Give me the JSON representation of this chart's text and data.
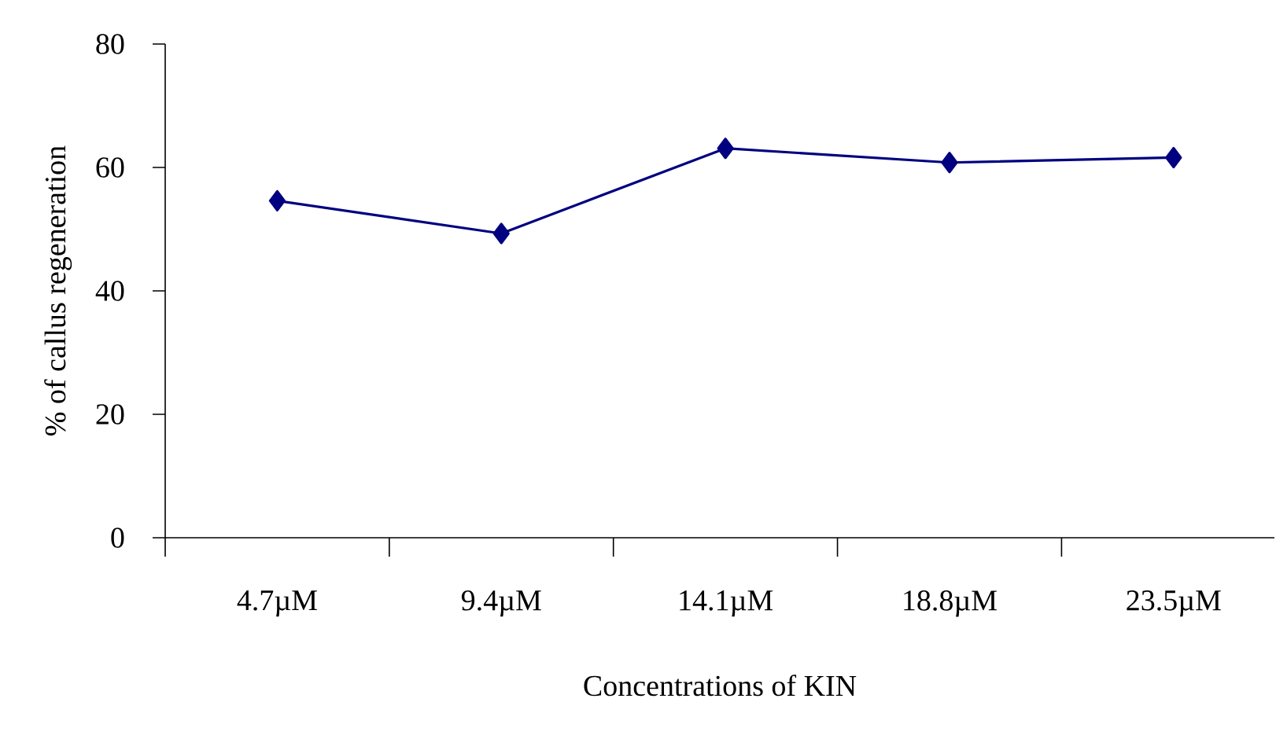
{
  "chart_data": {
    "type": "line",
    "xlabel": "Concentrations of KIN",
    "ylabel": "% of callus regeneration",
    "categories": [
      "4.7µM",
      "9.4µM",
      "14.1µM",
      "18.8µM",
      "23.5µM"
    ],
    "series": [
      {
        "color": "#000080",
        "values": [
          54.6,
          49.3,
          63.1,
          60.8,
          61.6
        ]
      }
    ],
    "ylim": [
      0,
      80
    ],
    "yticks": [
      0,
      20,
      40,
      60,
      80
    ],
    "marker": "diamond",
    "line_style": "solid"
  }
}
